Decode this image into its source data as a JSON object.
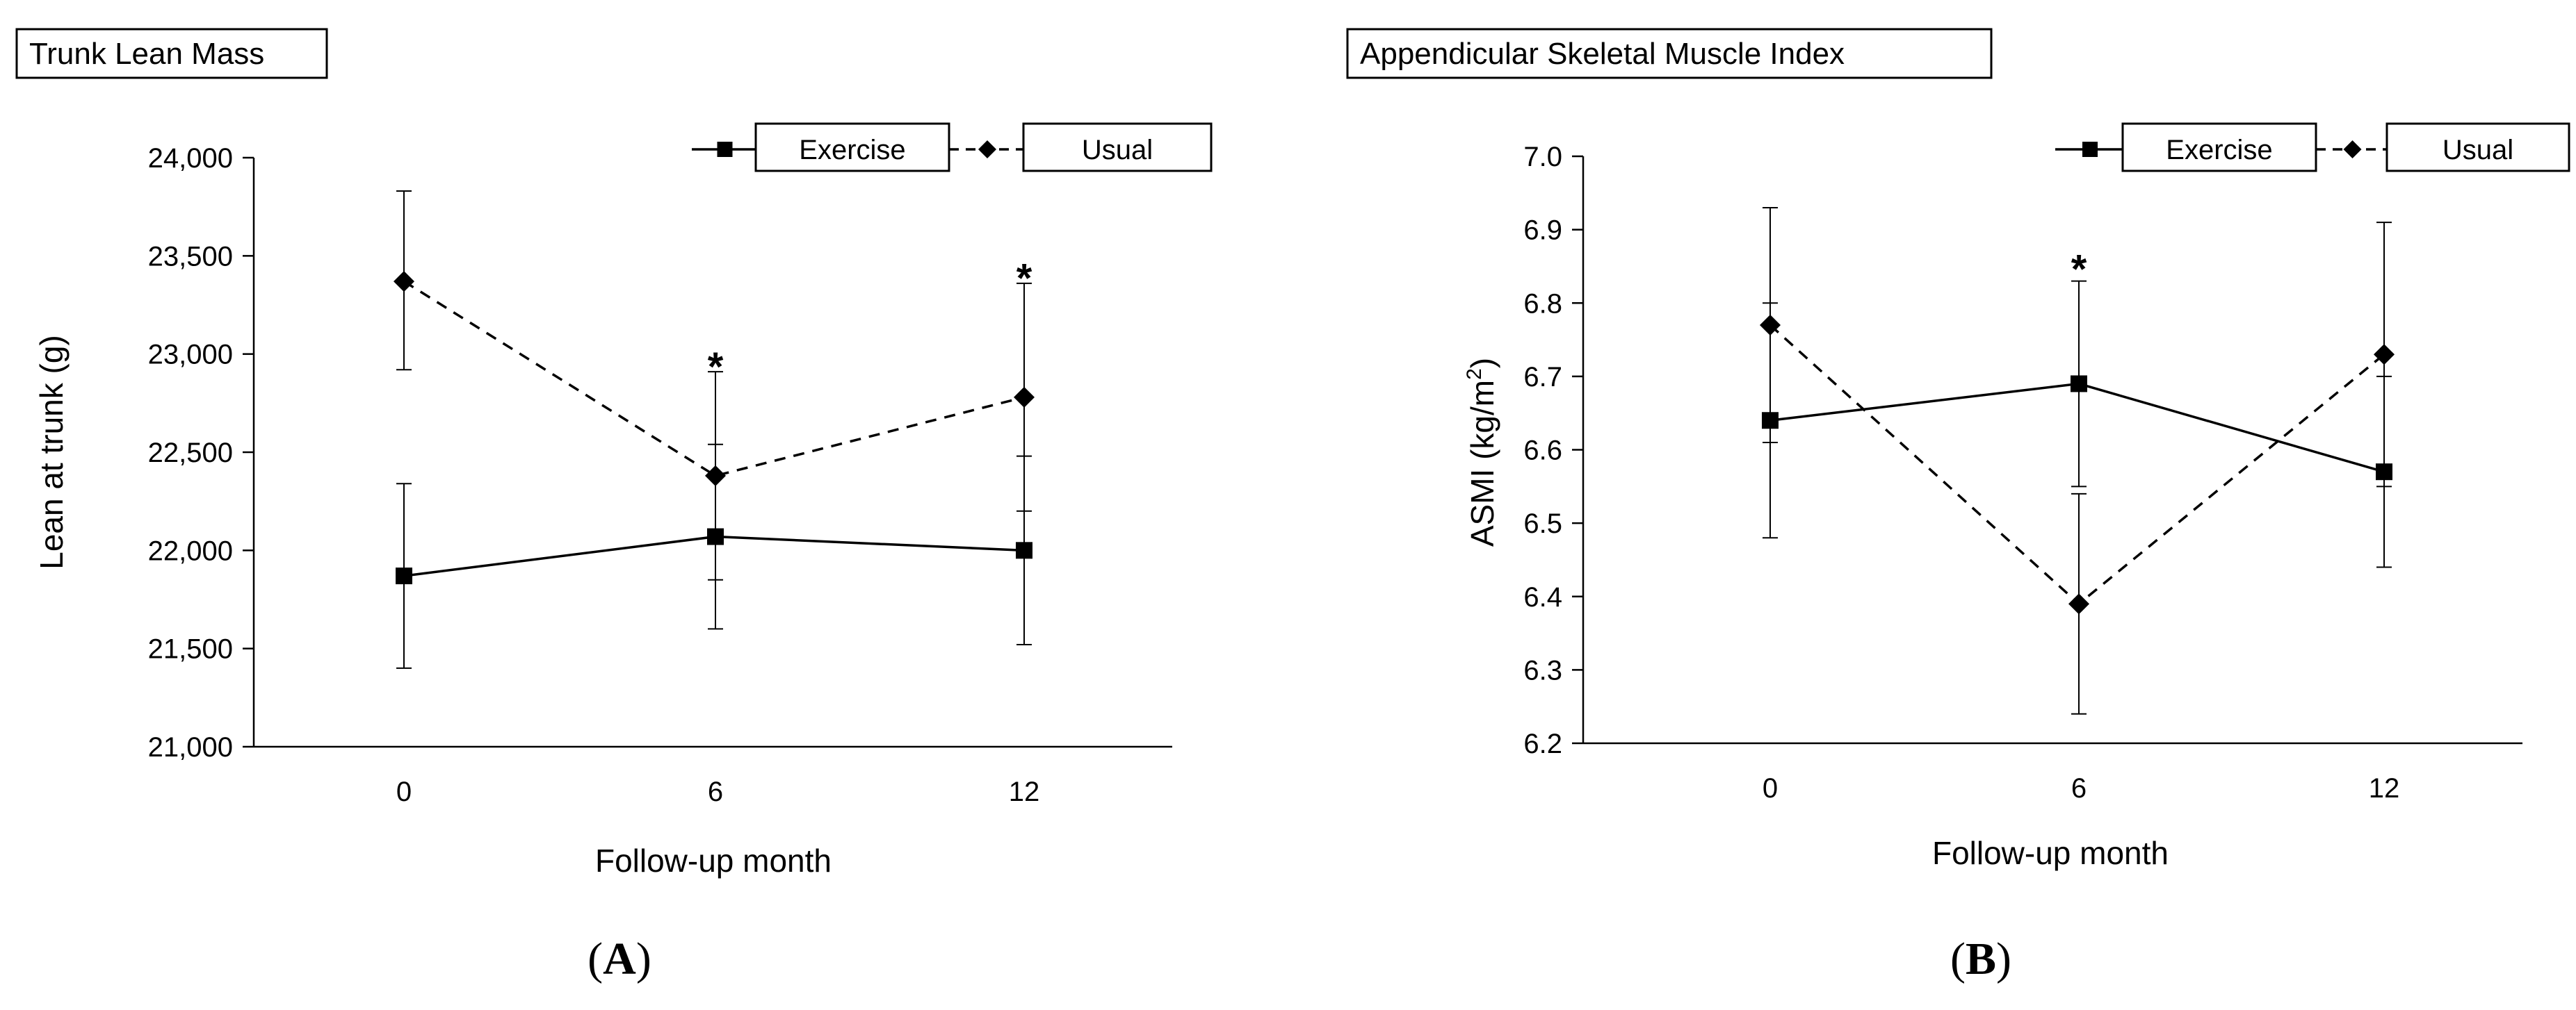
{
  "chart_data": [
    {
      "type": "line",
      "panel_label": "A",
      "title": "Trunk Lean Mass",
      "xlabel": "Follow-up month",
      "ylabel": "Lean at trunk (g)",
      "ylim": [
        21000,
        24000
      ],
      "y_ticks": [
        21000,
        21500,
        22000,
        22500,
        23000,
        23500,
        24000
      ],
      "y_tick_labels": [
        "21,000",
        "21,500",
        "22,000",
        "22,500",
        "23,000",
        "23,500",
        "24,000"
      ],
      "x": [
        0,
        6,
        12
      ],
      "x_tick_labels": [
        "0",
        "6",
        "12"
      ],
      "significance": [
        {
          "x": 6,
          "y": 22950,
          "symbol": "*"
        },
        {
          "x": 12,
          "y": 23400,
          "symbol": "*"
        }
      ],
      "series": [
        {
          "name": "Exercise",
          "line": "solid",
          "marker": "square",
          "values": [
            21870,
            22070,
            22000
          ],
          "err_low": [
            21400,
            21600,
            21520
          ],
          "err_high": [
            22340,
            22540,
            22480
          ]
        },
        {
          "name": "Usual",
          "line": "dashed",
          "marker": "diamond",
          "values": [
            23370,
            22380,
            22780
          ],
          "err_low": [
            22920,
            21850,
            22200
          ],
          "err_high": [
            23830,
            22910,
            23360
          ]
        }
      ]
    },
    {
      "type": "line",
      "panel_label": "B",
      "title": "Appendicular Skeletal Muscle Index",
      "xlabel": "Follow-up month",
      "ylabel_main": "ASMI (kg/m",
      "ylabel_sup": "2",
      "ylabel_end": ")",
      "ylim": [
        6.2,
        7.0
      ],
      "y_ticks": [
        6.2,
        6.3,
        6.4,
        6.5,
        6.6,
        6.7,
        6.8,
        6.9,
        7.0
      ],
      "y_tick_labels": [
        "6.2",
        "6.3",
        "6.4",
        "6.5",
        "6.6",
        "6.7",
        "6.8",
        "6.9",
        "7.0"
      ],
      "x": [
        0,
        6,
        12
      ],
      "x_tick_labels": [
        "0",
        "6",
        "12"
      ],
      "significance": [
        {
          "x": 6,
          "y": 6.85,
          "symbol": "*"
        }
      ],
      "series": [
        {
          "name": "Exercise",
          "line": "solid",
          "marker": "square",
          "values": [
            6.64,
            6.69,
            6.57
          ],
          "err_low": [
            6.48,
            6.55,
            6.44
          ],
          "err_high": [
            6.8,
            6.83,
            6.7
          ]
        },
        {
          "name": "Usual",
          "line": "dashed",
          "marker": "diamond",
          "values": [
            6.77,
            6.39,
            6.73
          ],
          "err_low": [
            6.61,
            6.24,
            6.55
          ],
          "err_high": [
            6.93,
            6.54,
            6.91
          ]
        }
      ]
    }
  ]
}
